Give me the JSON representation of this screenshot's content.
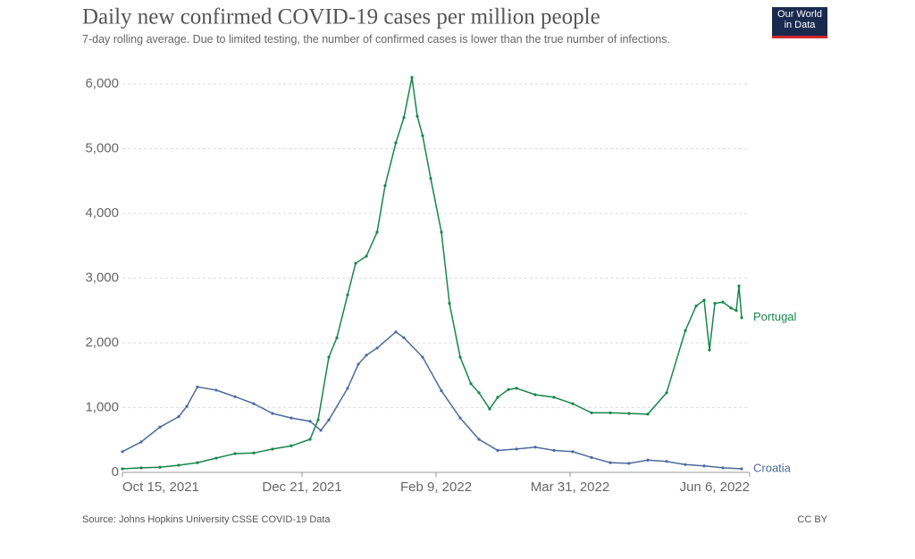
{
  "chart_data": {
    "type": "line",
    "title": "Daily new confirmed COVID-19 cases per million people",
    "subtitle": "7-day rolling average. Due to limited testing, the number of confirmed cases is lower than the true number of infections.",
    "source": "Source: Johns Hopkins University CSSE COVID-19 Data",
    "license": "CC BY",
    "logo": "Our World in Data",
    "xlim": [
      "2021-10-15",
      "2022-06-06"
    ],
    "xticks": [
      {
        "value": "2021-10-15",
        "label": "Oct 15, 2021"
      },
      {
        "value": "2021-12-21",
        "label": "Dec 21, 2021"
      },
      {
        "value": "2022-02-09",
        "label": "Feb 9, 2022"
      },
      {
        "value": "2022-03-31",
        "label": "Mar 31, 2022"
      },
      {
        "value": "2022-06-06",
        "label": "Jun 6, 2022"
      }
    ],
    "ylim": [
      0,
      6000
    ],
    "yticks": [
      0,
      {
        "value": 1000,
        "label": "1,000"
      },
      {
        "value": 2000,
        "label": "2,000"
      },
      {
        "value": 3000,
        "label": "3,000"
      },
      {
        "value": 4000,
        "label": "4,000"
      },
      {
        "value": 5000,
        "label": "5,000"
      },
      {
        "value": 6000,
        "label": "6,000"
      }
    ],
    "grid": true,
    "series": [
      {
        "name": "Portugal",
        "color": "#18864b",
        "x": [
          "2021-10-15",
          "2021-10-22",
          "2021-10-29",
          "2021-11-05",
          "2021-11-12",
          "2021-11-19",
          "2021-11-26",
          "2021-12-03",
          "2021-12-10",
          "2021-12-17",
          "2021-12-24",
          "2021-12-27",
          "2021-12-31",
          "2022-01-03",
          "2022-01-07",
          "2022-01-10",
          "2022-01-14",
          "2022-01-18",
          "2022-01-21",
          "2022-01-25",
          "2022-01-28",
          "2022-01-31",
          "2022-02-02",
          "2022-02-04",
          "2022-02-07",
          "2022-02-11",
          "2022-02-14",
          "2022-02-18",
          "2022-02-22",
          "2022-02-25",
          "2022-03-01",
          "2022-03-04",
          "2022-03-08",
          "2022-03-11",
          "2022-03-18",
          "2022-03-25",
          "2022-04-01",
          "2022-04-08",
          "2022-04-15",
          "2022-04-22",
          "2022-04-29",
          "2022-05-06",
          "2022-05-13",
          "2022-05-17",
          "2022-05-20",
          "2022-05-22",
          "2022-05-24",
          "2022-05-27",
          "2022-05-30",
          "2022-06-01",
          "2022-06-02",
          "2022-06-03"
        ],
        "values": [
          55,
          70,
          80,
          110,
          150,
          220,
          290,
          300,
          360,
          410,
          510,
          810,
          1780,
          2080,
          2740,
          3230,
          3340,
          3710,
          4430,
          5090,
          5480,
          6100,
          5500,
          5200,
          4540,
          3710,
          2610,
          1780,
          1370,
          1230,
          980,
          1160,
          1280,
          1300,
          1200,
          1160,
          1060,
          920,
          920,
          910,
          900,
          1230,
          2190,
          2570,
          2660,
          1890,
          2610,
          2630,
          2540,
          2500,
          2880,
          2390
        ]
      },
      {
        "name": "Croatia",
        "color": "#4c6a9c",
        "x": [
          "2021-10-15",
          "2021-10-22",
          "2021-10-29",
          "2021-11-05",
          "2021-11-08",
          "2021-11-12",
          "2021-11-19",
          "2021-11-26",
          "2021-12-03",
          "2021-12-10",
          "2021-12-17",
          "2021-12-24",
          "2021-12-28",
          "2021-12-31",
          "2022-01-07",
          "2022-01-11",
          "2022-01-14",
          "2022-01-18",
          "2022-01-25",
          "2022-01-28",
          "2022-02-04",
          "2022-02-11",
          "2022-02-18",
          "2022-02-25",
          "2022-03-04",
          "2022-03-11",
          "2022-03-18",
          "2022-03-25",
          "2022-04-01",
          "2022-04-08",
          "2022-04-15",
          "2022-04-22",
          "2022-04-29",
          "2022-05-06",
          "2022-05-13",
          "2022-05-20",
          "2022-05-27",
          "2022-06-03"
        ],
        "values": [
          320,
          470,
          700,
          860,
          1020,
          1320,
          1270,
          1170,
          1060,
          910,
          840,
          790,
          650,
          810,
          1300,
          1670,
          1810,
          1920,
          2170,
          2080,
          1780,
          1260,
          840,
          510,
          340,
          360,
          390,
          340,
          320,
          230,
          150,
          140,
          190,
          170,
          120,
          100,
          70,
          55
        ]
      }
    ]
  }
}
